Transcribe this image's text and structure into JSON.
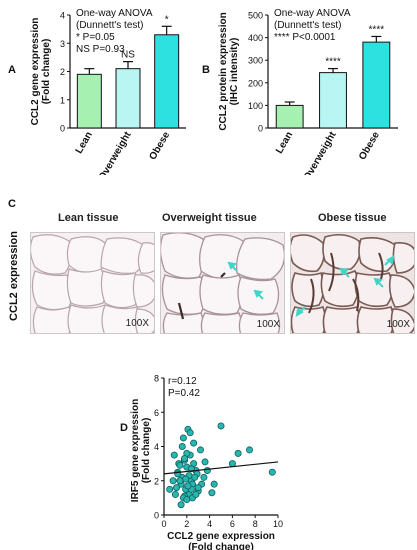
{
  "chart_data": [
    {
      "id": "A",
      "type": "bar",
      "panel_label": "A",
      "ylabel": "CCL2 gene expression\n(Fold change)",
      "ylim": [
        0,
        4
      ],
      "yticks": [
        0,
        1,
        2,
        3,
        4
      ],
      "categories": [
        "Lean",
        "Overweight",
        "Obese"
      ],
      "values": [
        1.9,
        2.1,
        3.3
      ],
      "errors": [
        0.2,
        0.25,
        0.3
      ],
      "colors": [
        "#a6f0b2",
        "#b9f5f2",
        "#2ee1e1"
      ],
      "significance": [
        "",
        "NS",
        "*"
      ],
      "annotation": [
        "One-way ANOVA",
        "(Dunnett's test)",
        "* P=0.05",
        "NS P=0.93"
      ]
    },
    {
      "id": "B",
      "type": "bar",
      "panel_label": "B",
      "ylabel": "CCL2 protein expression\n(IHC intensity)",
      "ylim": [
        0,
        500
      ],
      "yticks": [
        0,
        100,
        200,
        300,
        400,
        500
      ],
      "categories": [
        "Lean",
        "Overweight",
        "Obese"
      ],
      "values": [
        100,
        245,
        380
      ],
      "errors": [
        15,
        18,
        25
      ],
      "colors": [
        "#a6f0b2",
        "#b9f5f2",
        "#2ee1e1"
      ],
      "significance": [
        "",
        "****",
        "****"
      ],
      "annotation": [
        "One-way ANOVA",
        "(Dunnett's test)",
        "**** P<0.0001"
      ]
    },
    {
      "id": "D",
      "type": "scatter",
      "panel_label": "D",
      "xlabel": "CCL2 gene expression\n(Fold change)",
      "ylabel": "IRF5 gene expression\n(Fold change)",
      "xlim": [
        0,
        10
      ],
      "ylim": [
        0,
        8
      ],
      "xticks": [
        0,
        2,
        4,
        6,
        8,
        10
      ],
      "yticks": [
        0,
        2,
        4,
        6,
        8
      ],
      "annotation": [
        "r=0.12",
        "P=0.42"
      ],
      "point_color": "#27b6b0",
      "trendline": {
        "x": [
          0,
          10
        ],
        "y": [
          2.4,
          3.1
        ]
      },
      "x": [
        0.5,
        0.8,
        1.0,
        1.2,
        1.3,
        1.5,
        1.6,
        1.7,
        1.8,
        1.9,
        2.0,
        2.1,
        2.2,
        2.3,
        2.4,
        2.5,
        2.6,
        2.8,
        3.0,
        3.2,
        3.5,
        0.9,
        1.1,
        1.4,
        1.6,
        1.8,
        2.0,
        2.2,
        2.4,
        2.6,
        2.9,
        3.3,
        3.8,
        4.2,
        5.0,
        6.0,
        6.5,
        7.5,
        9.5,
        1.5,
        1.7,
        1.9,
        2.1,
        2.3,
        2.5,
        2.7,
        1.2,
        1.8,
        2.0,
        2.4,
        3.0,
        3.6,
        4.4,
        2.8,
        1.4
      ],
      "y": [
        1.5,
        2.0,
        1.2,
        2.5,
        3.0,
        1.8,
        2.2,
        4.5,
        3.2,
        1.5,
        2.8,
        5.0,
        1.2,
        3.5,
        2.0,
        1.8,
        4.2,
        2.6,
        1.4,
        3.8,
        2.2,
        3.5,
        1.6,
        2.9,
        4.0,
        1.1,
        3.6,
        2.3,
        1.5,
        3.0,
        2.4,
        1.8,
        2.6,
        1.3,
        5.2,
        3.0,
        3.6,
        3.8,
        2.5,
        0.6,
        1.0,
        2.1,
        1.7,
        4.8,
        1.0,
        2.2,
        2.4,
        3.3,
        0.9,
        2.7,
        1.6,
        3.1,
        1.8,
        1.2,
        2.0
      ]
    }
  ],
  "panel_c": {
    "panel_label": "C",
    "row_label": "CCL2 expression",
    "tissues": [
      {
        "title": "Lean tissue",
        "magnification": "100X"
      },
      {
        "title": "Overweight tissue",
        "magnification": "100X"
      },
      {
        "title": "Obese tissue",
        "magnification": "100X"
      }
    ]
  }
}
